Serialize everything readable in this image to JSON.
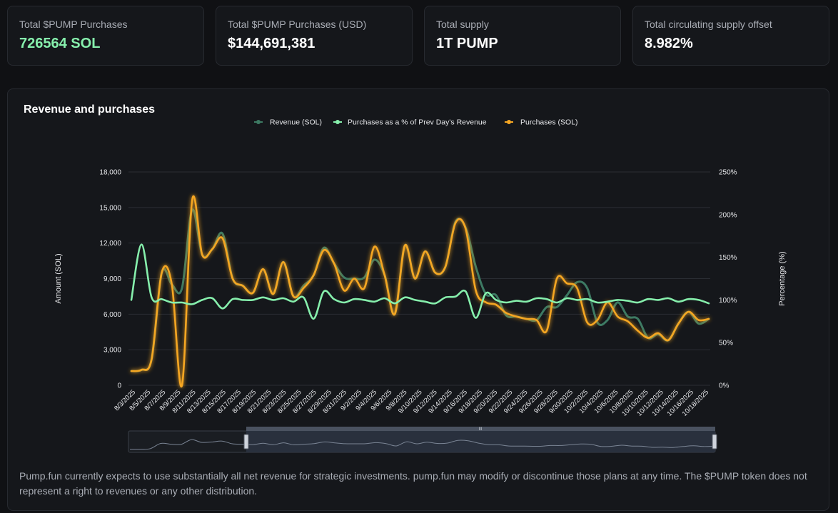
{
  "stats": [
    {
      "label": "Total $PUMP Purchases",
      "value": "726564 SOL"
    },
    {
      "label": "Total $PUMP Purchases (USD)",
      "value": "$144,691,381"
    },
    {
      "label": "Total supply",
      "value": "1T PUMP"
    },
    {
      "label": "Total circulating supply offset",
      "value": "8.982%"
    }
  ],
  "panel": {
    "title": "Revenue and purchases",
    "disclaimer": "Pump.fun currently expects to use substantially all net revenue for strategic investments. pump.fun may modify or discontinue those plans at any time. The $PUMP token does not represent a right to revenues or any other distribution.",
    "range_handle_label": "III"
  },
  "colors": {
    "revenue": "#3d7a63",
    "percent": "#86efac",
    "purchases": "#f5a623",
    "grid": "#2a2d33",
    "text": "#e6e7ea"
  },
  "chart_data": {
    "type": "line",
    "x_tick_labels": [
      "8/3/2025",
      "8/5/2025",
      "8/7/2025",
      "8/9/2025",
      "8/11/2025",
      "8/13/2025",
      "8/15/2025",
      "8/17/2025",
      "8/19/2025",
      "8/21/2025",
      "8/23/2025",
      "8/25/2025",
      "8/27/2025",
      "8/29/2025",
      "8/31/2025",
      "9/2/2025",
      "9/4/2025",
      "9/6/2025",
      "9/8/2025",
      "9/10/2025",
      "9/12/2025",
      "9/14/2025",
      "9/16/2025",
      "9/18/2025",
      "9/20/2025",
      "9/22/2025",
      "9/24/2025",
      "9/26/2025",
      "9/28/2025",
      "9/30/2025",
      "10/2/2025",
      "10/4/2025",
      "10/6/2025",
      "10/8/2025",
      "10/10/2025",
      "10/12/2025",
      "10/14/2025",
      "10/16/2025",
      "10/18/2025"
    ],
    "ylabel": "Amount (SOL)",
    "y2label": "Percentage (%)",
    "y_ticks": [
      "0",
      "3,000",
      "6,000",
      "9,000",
      "12,000",
      "15,000",
      "18,000"
    ],
    "y2_ticks": [
      "0%",
      "50%",
      "100%",
      "150%",
      "200%",
      "250%"
    ],
    "ylim": [
      0,
      18000
    ],
    "y2lim": [
      0,
      250
    ],
    "legend_position": "top-center",
    "grid": true,
    "series": [
      {
        "name": "Revenue (SOL)",
        "axis": "left",
        "values": [
          1200,
          1300,
          2200,
          9500,
          8500,
          8200,
          14800,
          11000,
          11500,
          12800,
          9000,
          8400,
          7800,
          9800,
          7700,
          10400,
          7500,
          8400,
          9300,
          11600,
          10300,
          9100,
          9000,
          9100,
          10600,
          9300,
          6000,
          11800,
          9000,
          11300,
          9500,
          10000,
          13800,
          13300,
          10000,
          7700,
          7600,
          5900,
          5800,
          5600,
          5500,
          6600,
          6600,
          7600,
          8700,
          8200,
          5300,
          5500,
          7000,
          5800,
          5600,
          4000,
          4300,
          3800,
          5200,
          6200,
          5200,
          5600
        ]
      },
      {
        "name": "Purchases as a % of Prev Day's Revenue",
        "axis": "right",
        "values": [
          100,
          165,
          103,
          101,
          97,
          97,
          95,
          100,
          102,
          90,
          101,
          100,
          100,
          103,
          100,
          102,
          98,
          103,
          78,
          110,
          101,
          97,
          101,
          100,
          98,
          102,
          96,
          103,
          100,
          98,
          96,
          103,
          104,
          110,
          79,
          108,
          100,
          97,
          99,
          98,
          102,
          101,
          97,
          102,
          100,
          101,
          97,
          98,
          100,
          99,
          97,
          101,
          100,
          102,
          98,
          101,
          100,
          96
        ]
      },
      {
        "name": "Purchases (SOL)",
        "axis": "left",
        "values": [
          1200,
          1300,
          2200,
          9500,
          8500,
          0,
          15600,
          11000,
          11500,
          12400,
          9000,
          8400,
          7800,
          9800,
          7700,
          10400,
          7500,
          8200,
          9300,
          11400,
          10300,
          8000,
          9000,
          8200,
          11700,
          9300,
          6000,
          11800,
          9000,
          11300,
          9500,
          10000,
          13700,
          13200,
          8000,
          7000,
          6800,
          6100,
          5800,
          5600,
          5500,
          4600,
          9000,
          8600,
          8200,
          5300,
          5500,
          7000,
          5800,
          5400,
          4600,
          4000,
          4400,
          3800,
          5200,
          6200,
          5500,
          5600
        ]
      }
    ]
  }
}
